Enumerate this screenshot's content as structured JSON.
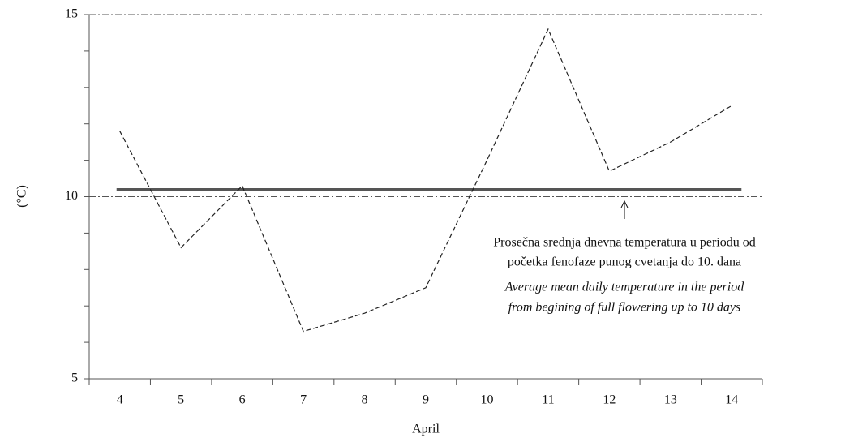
{
  "chart_data": {
    "type": "line",
    "ylabel": "(°C)",
    "xlabel": "April",
    "categories": [
      "4",
      "5",
      "6",
      "7",
      "8",
      "9",
      "10",
      "11",
      "12",
      "13",
      "14"
    ],
    "series": [
      {
        "color": "#222222",
        "values": [
          11.8,
          8.6,
          10.3,
          6.3,
          6.8,
          7.5,
          11.0,
          14.6,
          10.7,
          11.5,
          12.5
        ]
      }
    ],
    "average": 10.2,
    "average_color": "#555555",
    "ylim": [
      5,
      15
    ],
    "yticks": [
      5,
      10,
      15
    ],
    "yticks_minor": [
      6,
      7,
      8,
      9,
      11,
      12,
      13,
      14
    ],
    "grid": true,
    "annotation": [
      "Prosečna srednja dnevna temperatura u periodu od",
      "početka fenofaze punog cvetanja do 10. dana",
      "Average mean  daily temperature in the period",
      "from begining of full flowering up to 10 days"
    ]
  }
}
